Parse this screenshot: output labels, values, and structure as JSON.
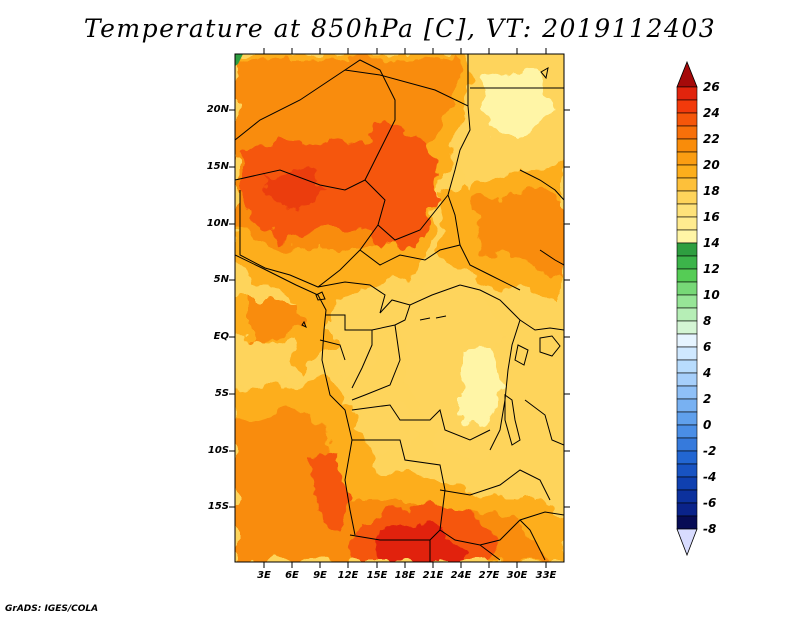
{
  "title": "Temperature at 850hPa [C], VT: 2019112403",
  "credit": "GrADS: IGES/COLA",
  "map": {
    "latitude_labels": [
      "20N",
      "15N",
      "10N",
      "5N",
      "EQ",
      "5S",
      "10S",
      "15S"
    ],
    "longitude_labels": [
      "3E",
      "6E",
      "9E",
      "12E",
      "15E",
      "18E",
      "21E",
      "24E",
      "27E",
      "30E",
      "33E"
    ]
  },
  "colorbar": {
    "labels": [
      "26",
      "24",
      "22",
      "20",
      "18",
      "16",
      "14",
      "12",
      "10",
      "8",
      "6",
      "4",
      "2",
      "0",
      "-2",
      "-4",
      "-6",
      "-8"
    ],
    "colors": [
      "#a50a0a",
      "#e1240d",
      "#f5560a",
      "#f98c0a",
      "#fdae1c",
      "#fed45b",
      "#fff5a6",
      "#2e9e40",
      "#55cc55",
      "#97e597",
      "#d4f5d4",
      "#cfe8ff",
      "#a6cffb",
      "#78b1f2",
      "#4a8ee6",
      "#2266d2",
      "#0f40b0",
      "#0a238a",
      "#070c55",
      "#d8dcff"
    ]
  }
}
